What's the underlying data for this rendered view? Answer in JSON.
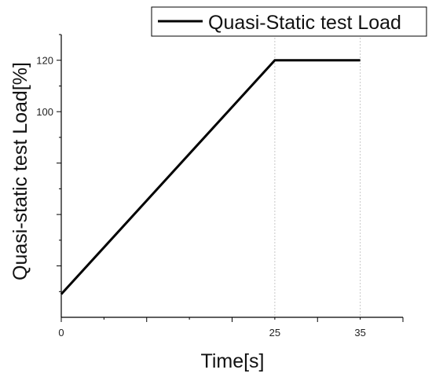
{
  "chart_data": {
    "type": "line",
    "xlabel": "Time[s]",
    "ylabel": "Quasi-static test Load[%]",
    "xlim": [
      0,
      40
    ],
    "ylim": [
      20,
      130
    ],
    "xticks": [
      0,
      25,
      35
    ],
    "yticks": [
      100,
      120
    ],
    "grid": "vertical dotted at labeled x ticks",
    "legend_position": "top-right",
    "series": [
      {
        "name": "Quasi-Static test Load",
        "color": "#000000",
        "x": [
          0,
          25,
          35
        ],
        "y": [
          29,
          120,
          120
        ]
      }
    ]
  }
}
